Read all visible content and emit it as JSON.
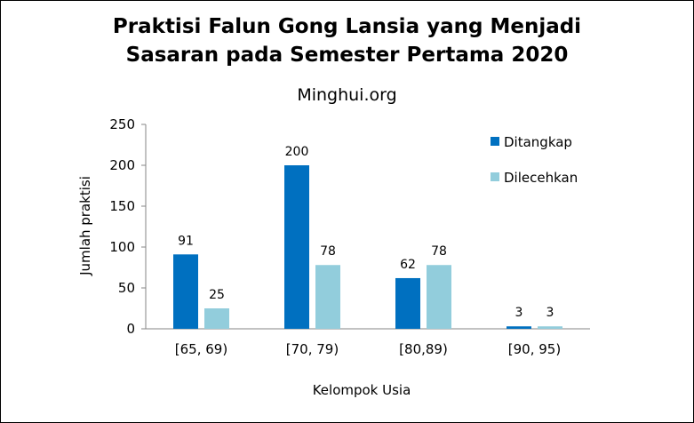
{
  "chart_data": {
    "type": "bar",
    "title_lines": [
      "Praktisi Falun Gong Lansia yang Menjadi",
      "Sasaran pada Semester Pertama 2020"
    ],
    "subtitle": "Minghui.org",
    "xlabel": "Kelompok Usia",
    "ylabel": "Jumlah praktisi",
    "ylim": [
      0,
      250
    ],
    "yticks": [
      0,
      50,
      100,
      150,
      200,
      250
    ],
    "categories": [
      "[65, 69)",
      "[70, 79)",
      "[80,89)",
      "[90, 95)"
    ],
    "series": [
      {
        "name": "Ditangkap",
        "values": [
          91,
          200,
          62,
          3
        ],
        "color": "#0070C0"
      },
      {
        "name": "Dilecehkan",
        "values": [
          25,
          78,
          78,
          3
        ],
        "color": "#92CDDC"
      }
    ],
    "grid": false,
    "legend_position": "top-right"
  }
}
